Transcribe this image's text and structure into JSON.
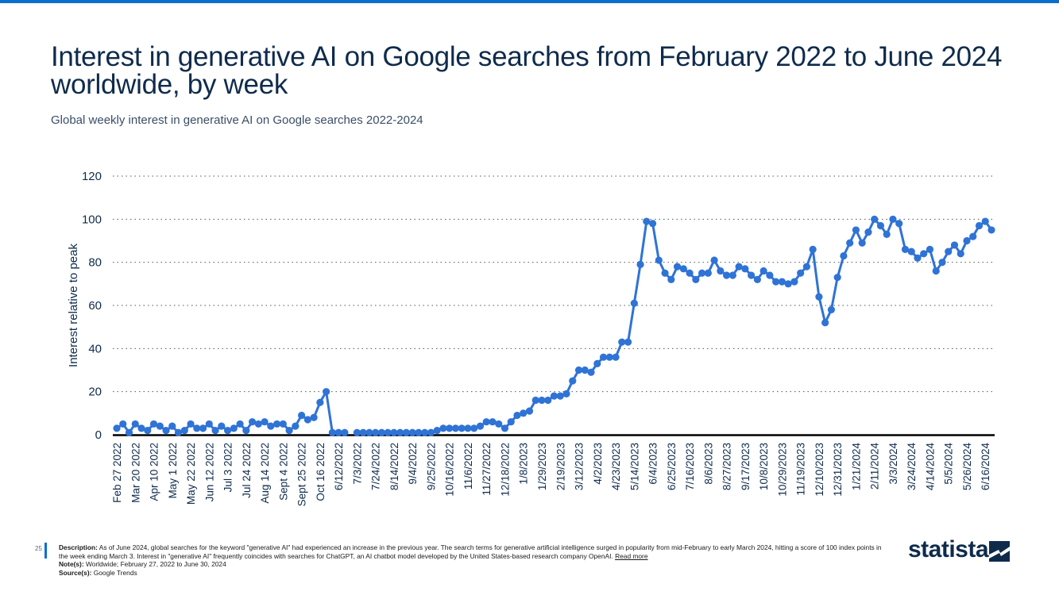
{
  "header": {
    "title": "Interest in generative AI on Google searches from February 2022 to June 2024 worldwide, by week",
    "subtitle": "Global weekly interest in generative AI on Google searches 2022-2024"
  },
  "footer": {
    "page_number": "25",
    "description_label": "Description:",
    "description": "As of June 2024, global searches for the keyword \"generative AI\" had experienced an increase in the previous year. The search terms for generative artificial intelligence surged in popularity from mid-February to early March 2024, hitting a score of 100 index points in the week ending March 3. Interest in \"generative AI\" frequently coincides with searches for ChatGPT, an AI chatbot model developed by the United States-based research company OpenAI.",
    "read_more": "Read more",
    "notes_label": "Note(s):",
    "notes": "Worldwide; February 27, 2022 to June 30, 2024",
    "source_label": "Source(s):",
    "source": "Google Trends",
    "logo_text": "statista"
  },
  "colors": {
    "line": "#2f73d6",
    "title": "#0f2b4c",
    "accent": "#0a6ed1"
  },
  "chart_data": {
    "type": "line",
    "ylabel": "Interest relative to peak",
    "xlabel": "",
    "ylim": [
      0,
      120
    ],
    "yticks": [
      0,
      20,
      40,
      60,
      80,
      100,
      120
    ],
    "grid": "horizontal dotted",
    "x_tick_labels": [
      "Feb 27 2022",
      "Mar 20 2022",
      "Apr 10 2022",
      "May 1 2022",
      "May 22 2022",
      "Jun 12 2022",
      "Jul 3 2022",
      "Jul 24 2022",
      "Aug 14 2022",
      "Sept 4 2022",
      "Sept 25 2022",
      "Oct 16 2022",
      "6/12/2022",
      "7/3/2022",
      "7/24/2022",
      "8/14/2022",
      "9/4/2022",
      "9/25/2022",
      "10/16/2022",
      "11/6/2022",
      "11/27/2022",
      "12/18/2022",
      "1/8/2023",
      "1/29/2023",
      "2/19/2023",
      "3/12/2023",
      "4/2/2023",
      "4/23/2023",
      "5/14/2023",
      "6/4/2023",
      "6/25/2023",
      "7/16/2023",
      "8/6/2023",
      "8/27/2023",
      "9/17/2023",
      "10/8/2023",
      "10/29/2023",
      "11/19/2023",
      "12/10/2023",
      "12/31/2023",
      "1/21/2024",
      "2/11/2024",
      "3/3/2024",
      "3/24/2024",
      "4/14/2024",
      "5/5/2024",
      "5/26/2024",
      "6/16/2024"
    ],
    "series": [
      {
        "values": [
          3,
          5,
          1,
          5,
          3,
          2,
          5,
          4,
          2,
          4,
          1,
          2,
          5,
          3,
          3,
          5,
          2,
          4,
          2,
          3,
          5,
          2,
          6,
          5,
          6,
          4,
          5,
          5,
          2,
          4,
          9,
          7,
          8,
          15,
          20,
          1,
          1,
          1,
          1,
          1,
          1,
          1,
          1,
          1,
          1,
          1,
          1,
          1,
          1,
          1,
          1,
          1,
          2,
          3,
          3,
          3,
          3,
          3,
          3,
          4,
          6,
          6,
          5,
          3,
          6,
          9,
          10,
          11,
          16,
          16,
          16,
          18,
          18,
          19,
          25,
          30,
          30,
          29,
          33,
          36,
          36,
          36,
          43,
          43,
          61,
          79,
          99,
          98,
          81,
          75,
          72,
          78,
          77,
          75,
          72,
          75,
          75,
          81,
          76,
          74,
          74,
          78,
          77,
          74,
          72,
          76,
          74,
          71,
          71,
          70,
          71,
          75,
          78,
          86,
          64,
          52,
          58,
          73,
          83,
          89,
          95,
          89,
          94,
          100,
          97,
          93,
          100,
          98,
          86,
          85,
          82,
          84,
          86,
          76,
          80,
          85,
          88,
          84,
          90,
          92,
          97,
          99,
          95
        ],
        "missing_index": [
          38
        ]
      }
    ]
  }
}
